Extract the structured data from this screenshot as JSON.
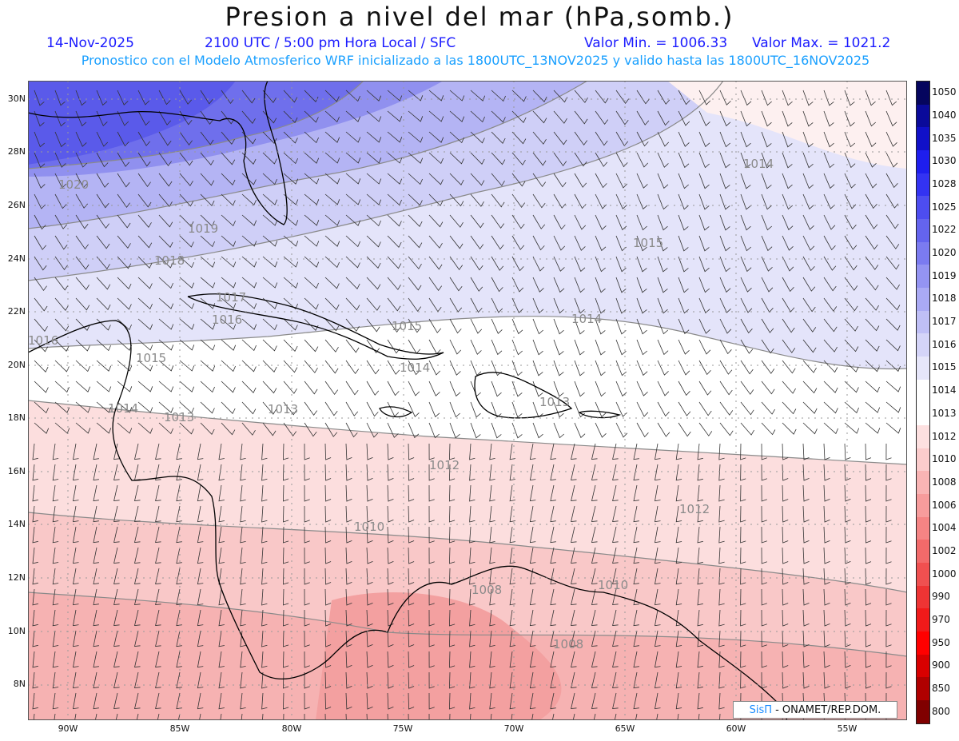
{
  "header": {
    "title": "Presion a nivel del mar (hPa,somb.)",
    "date": "14-Nov-2025",
    "time": "2100 UTC / 5:00 pm Hora Local / SFC",
    "valor_min": "Valor Min. = 1006.33",
    "valor_max": "Valor Max. = 1021.2",
    "subtitle": "Pronostico con el Modelo Atmosferico WRF inicializado a las 1800UTC_13NOV2025 y valido hasta las  1800UTC_16NOV2025"
  },
  "colors": {
    "title": "#111111",
    "info": "#1a1aff",
    "subtitle": "#1aa0ff"
  },
  "lat_labels": [
    "30N",
    "28N",
    "26N",
    "24N",
    "22N",
    "20N",
    "18N",
    "16N",
    "14N",
    "12N",
    "10N",
    "8N"
  ],
  "lon_labels": [
    "90W",
    "85W",
    "80W",
    "75W",
    "70W",
    "65W",
    "60W",
    "55W"
  ],
  "contour_labels": [
    "1020",
    "1019",
    "1018",
    "1017",
    "1016",
    "1016",
    "1015",
    "1015",
    "1015",
    "1014",
    "1014",
    "1014",
    "1014",
    "1013",
    "1013",
    "1013",
    "1012",
    "1012",
    "1010",
    "1010",
    "1008",
    "1008"
  ],
  "colorbar": {
    "levels": [
      "1050",
      "1040",
      "1035",
      "1030",
      "1028",
      "1025",
      "1022",
      "1020",
      "1019",
      "1018",
      "1017",
      "1016",
      "1015",
      "1014",
      "1013",
      "1012",
      "1010",
      "1008",
      "1006",
      "1004",
      "1002",
      "1000",
      "990",
      "970",
      "950",
      "900",
      "850",
      "800"
    ],
    "colors": [
      "#05055e",
      "#0a0a9a",
      "#1010c8",
      "#1e1eee",
      "#3333f2",
      "#4d4df0",
      "#6464ee",
      "#7b7bf0",
      "#9494f2",
      "#aaaaf4",
      "#bfbff6",
      "#d4d4f8",
      "#e6e6fa",
      "#ffffff",
      "#ffffff",
      "#fde0e0",
      "#fbcccc",
      "#f9b4b4",
      "#f79c9c",
      "#f58484",
      "#f26a6a",
      "#f05050",
      "#ee3434",
      "#f01a1a",
      "#ff0000",
      "#d80000",
      "#b00000",
      "#800000"
    ]
  },
  "credit": {
    "brand": "SisΠ",
    "text": "- ONAMET/REP.DOM."
  }
}
